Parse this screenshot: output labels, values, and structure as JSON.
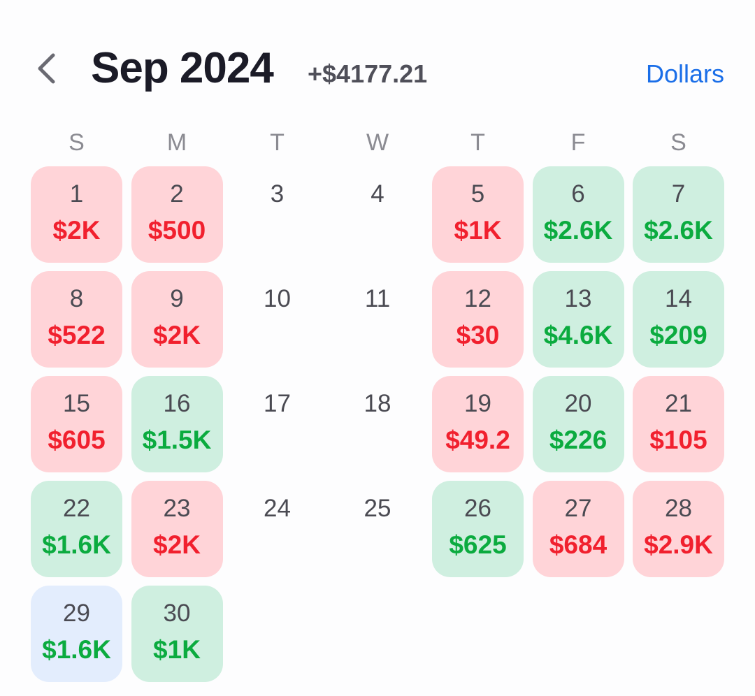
{
  "header": {
    "month_label": "Sep 2024",
    "month_total": "+$4177.21",
    "unit_toggle": "Dollars"
  },
  "colors": {
    "loss_bg": "#ffd4d8",
    "loss_text": "#f1202e",
    "gain_bg": "#cfefe0",
    "gain_text": "#0bab3f",
    "today_bg": "#e3edfd",
    "accent": "#1a6ee8"
  },
  "icons": {
    "back": "chevron-left-icon"
  },
  "weekdays": [
    "S",
    "M",
    "T",
    "W",
    "T",
    "F",
    "S"
  ],
  "days": [
    {
      "day": "1",
      "amount": "$2K",
      "status": "loss"
    },
    {
      "day": "2",
      "amount": "$500",
      "status": "loss"
    },
    {
      "day": "3",
      "amount": "",
      "status": "empty"
    },
    {
      "day": "4",
      "amount": "",
      "status": "empty"
    },
    {
      "day": "5",
      "amount": "$1K",
      "status": "loss"
    },
    {
      "day": "6",
      "amount": "$2.6K",
      "status": "gain"
    },
    {
      "day": "7",
      "amount": "$2.6K",
      "status": "gain"
    },
    {
      "day": "8",
      "amount": "$522",
      "status": "loss"
    },
    {
      "day": "9",
      "amount": "$2K",
      "status": "loss"
    },
    {
      "day": "10",
      "amount": "",
      "status": "empty"
    },
    {
      "day": "11",
      "amount": "",
      "status": "empty"
    },
    {
      "day": "12",
      "amount": "$30",
      "status": "loss"
    },
    {
      "day": "13",
      "amount": "$4.6K",
      "status": "gain"
    },
    {
      "day": "14",
      "amount": "$209",
      "status": "gain"
    },
    {
      "day": "15",
      "amount": "$605",
      "status": "loss"
    },
    {
      "day": "16",
      "amount": "$1.5K",
      "status": "gain"
    },
    {
      "day": "17",
      "amount": "",
      "status": "empty"
    },
    {
      "day": "18",
      "amount": "",
      "status": "empty"
    },
    {
      "day": "19",
      "amount": "$49.2",
      "status": "loss"
    },
    {
      "day": "20",
      "amount": "$226",
      "status": "gain"
    },
    {
      "day": "21",
      "amount": "$105",
      "status": "loss"
    },
    {
      "day": "22",
      "amount": "$1.6K",
      "status": "gain"
    },
    {
      "day": "23",
      "amount": "$2K",
      "status": "loss"
    },
    {
      "day": "24",
      "amount": "",
      "status": "empty"
    },
    {
      "day": "25",
      "amount": "",
      "status": "empty"
    },
    {
      "day": "26",
      "amount": "$625",
      "status": "gain"
    },
    {
      "day": "27",
      "amount": "$684",
      "status": "loss"
    },
    {
      "day": "28",
      "amount": "$2.9K",
      "status": "loss"
    },
    {
      "day": "29",
      "amount": "$1.6K",
      "status": "today"
    },
    {
      "day": "30",
      "amount": "$1K",
      "status": "gain"
    }
  ]
}
